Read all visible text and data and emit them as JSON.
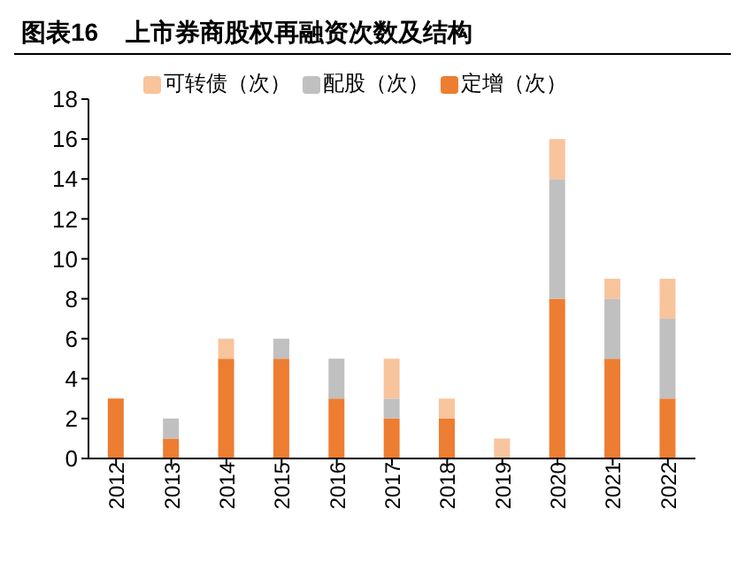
{
  "chart_data": {
    "type": "bar",
    "title": "图表16    上市券商股权再融资次数及结构",
    "categories": [
      "2012",
      "2013",
      "2014",
      "2015",
      "2016",
      "2017",
      "2018",
      "2019",
      "2020",
      "2021",
      "2022"
    ],
    "stacked": true,
    "series": [
      {
        "name": "定增（次）",
        "color": "#ed7d31",
        "values": [
          3,
          1,
          5,
          5,
          3,
          2,
          2,
          0,
          8,
          5,
          3
        ]
      },
      {
        "name": "配股（次）",
        "color": "#c0c0c0",
        "values": [
          0,
          1,
          0,
          1,
          2,
          1,
          0,
          0,
          6,
          3,
          4
        ]
      },
      {
        "name": "可转债（次）",
        "color": "#f8c49c",
        "values": [
          0,
          0,
          1,
          0,
          0,
          2,
          1,
          1,
          2,
          1,
          2
        ]
      }
    ],
    "ylim": [
      0,
      18
    ],
    "yticks": [
      0,
      2,
      4,
      6,
      8,
      10,
      12,
      14,
      16,
      18
    ],
    "grid": false,
    "legend": "top"
  }
}
